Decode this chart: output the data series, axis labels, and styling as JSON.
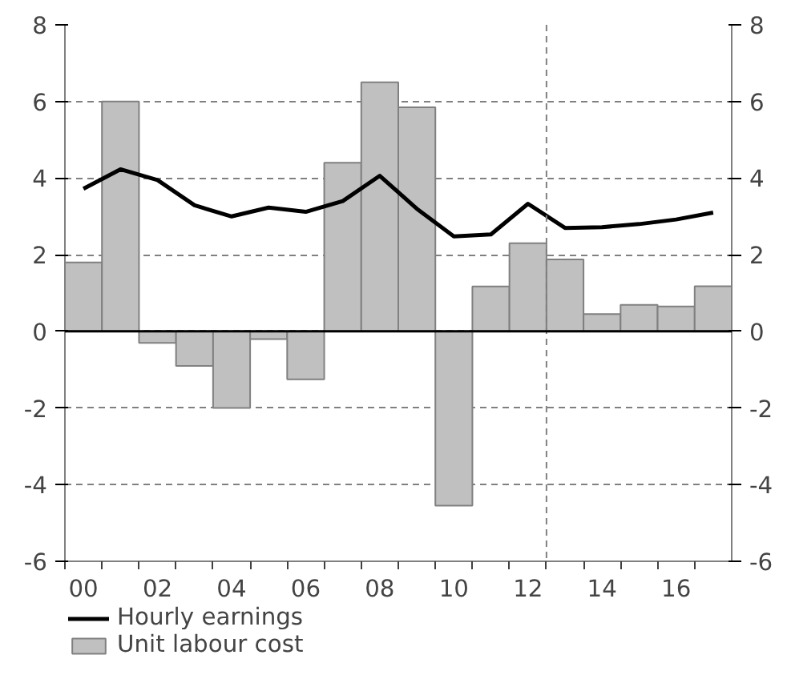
{
  "chart_data": {
    "type": "bar",
    "x": [
      2000,
      2001,
      2002,
      2003,
      2004,
      2005,
      2006,
      2007,
      2008,
      2009,
      2010,
      2011,
      2012,
      2013,
      2014,
      2015,
      2016,
      2017
    ],
    "xlim": [
      1999.5,
      2017.5
    ],
    "xticks": [
      {
        "value": 2000,
        "label": "00"
      },
      {
        "value": 2002,
        "label": "02"
      },
      {
        "value": 2004,
        "label": "04"
      },
      {
        "value": 2006,
        "label": "06"
      },
      {
        "value": 2008,
        "label": "08"
      },
      {
        "value": 2010,
        "label": "10"
      },
      {
        "value": 2012,
        "label": "12"
      },
      {
        "value": 2014,
        "label": "14"
      },
      {
        "value": 2016,
        "label": "16"
      },
      {
        "value": 1999.5,
        "label": null
      },
      {
        "value": 2000.5,
        "label": null
      },
      {
        "value": 2001.5,
        "label": null
      },
      {
        "value": 2002.5,
        "label": null
      },
      {
        "value": 2003.5,
        "label": null
      },
      {
        "value": 2004.5,
        "label": null
      },
      {
        "value": 2005.5,
        "label": null
      },
      {
        "value": 2006.5,
        "label": null
      },
      {
        "value": 2007.5,
        "label": null
      },
      {
        "value": 2008.5,
        "label": null
      },
      {
        "value": 2009.5,
        "label": null
      },
      {
        "value": 2010.5,
        "label": null
      },
      {
        "value": 2011.5,
        "label": null
      },
      {
        "value": 2012.5,
        "label": null
      },
      {
        "value": 2013.5,
        "label": null
      },
      {
        "value": 2014.5,
        "label": null
      },
      {
        "value": 2015.5,
        "label": null
      },
      {
        "value": 2016.5,
        "label": null
      }
    ],
    "ylim": [
      -6,
      8
    ],
    "yticks": [
      -6,
      -4,
      -2,
      0,
      2,
      4,
      6,
      8
    ],
    "y2lim": [
      -6,
      8
    ],
    "y2ticks": [
      -6,
      -4,
      -2,
      0,
      2,
      4,
      6,
      8
    ],
    "series": [
      {
        "name": "Unit labour cost",
        "color": "#c0c0c0",
        "values": [
          1.8,
          6.0,
          -0.3,
          -0.9,
          -2.0,
          -0.2,
          -1.25,
          4.4,
          6.5,
          5.85,
          -4.55,
          1.17,
          2.3,
          1.88,
          0.45,
          0.69,
          0.65,
          1.18
        ]
      },
      {
        "name": "Hourly earnings",
        "type": "line",
        "color": "#000000",
        "values": [
          3.72,
          4.23,
          3.95,
          3.29,
          3.0,
          3.23,
          3.12,
          3.4,
          4.06,
          3.2,
          2.48,
          2.53,
          3.33,
          2.7,
          2.72,
          2.8,
          2.92,
          3.1
        ]
      }
    ],
    "ref_lines": [
      {
        "axis": "x",
        "value": 2012.5,
        "line_style": "dashed",
        "color": "#808080"
      },
      {
        "axis": "y",
        "value": 0,
        "line_style": "solid",
        "color": "#000000"
      }
    ],
    "grid": "y",
    "legend": "bottom",
    "line_style": "solid",
    "marker": "none"
  }
}
